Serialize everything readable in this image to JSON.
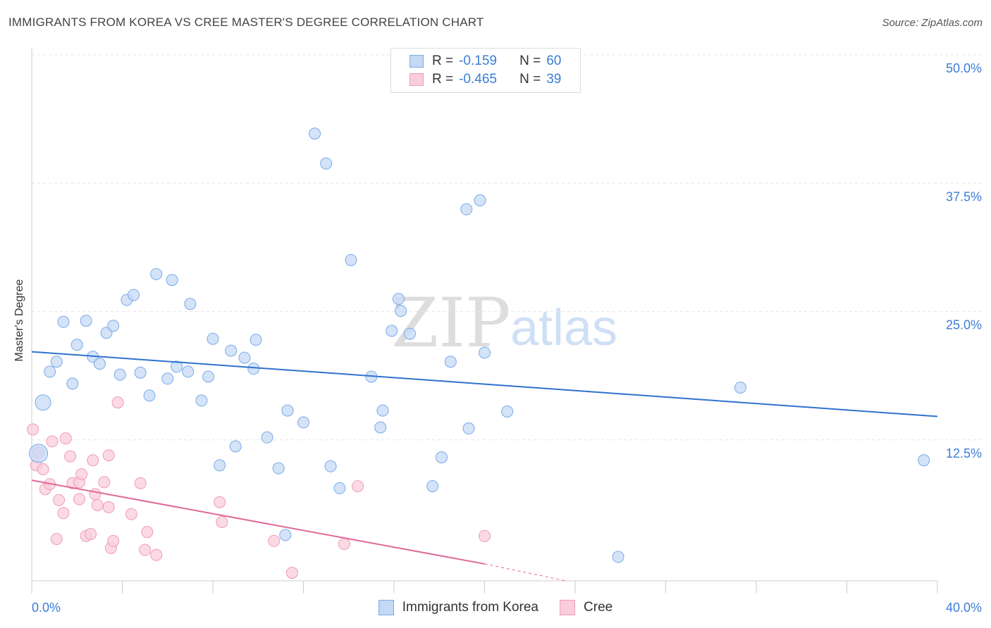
{
  "title": "IMMIGRANTS FROM KOREA VS CREE MASTER'S DEGREE CORRELATION CHART",
  "source": "Source: ZipAtlas.com",
  "watermark": {
    "zip": "ZIP",
    "atlas": "atlas"
  },
  "legend": {
    "rows": [
      {
        "r_label": "R =",
        "r_value": "-0.159",
        "n_label": "N =",
        "n_value": "60"
      },
      {
        "r_label": "R =",
        "r_value": "-0.465",
        "n_label": "N =",
        "n_value": "39"
      }
    ]
  },
  "bottom_legend": {
    "korea": "Immigrants from Korea",
    "cree": "Cree"
  },
  "chart_data": {
    "type": "scatter",
    "title": "IMMIGRANTS FROM KOREA VS CREE MASTER'S DEGREE CORRELATION CHART",
    "xlabel": "",
    "ylabel": "Master's Degree",
    "xlim": [
      0,
      40
    ],
    "ylim": [
      0,
      50
    ],
    "x_tick_labels": [
      "0.0%",
      "40.0%"
    ],
    "y_tick_labels": [
      "50.0%",
      "37.5%",
      "25.0%",
      "12.5%"
    ],
    "y_ticks": [
      50,
      37.5,
      25,
      12.5
    ],
    "grid": "horizontal dashed",
    "legend_placement": "top-center",
    "colors": {
      "korea": "#7aaae8",
      "korea_fill": "#c5d9f5",
      "korea_line": "#2f72d0",
      "cree": "#f09ab8",
      "cree_fill": "#f9cdda",
      "cree_line": "#e0689a"
    },
    "series": [
      {
        "name": "Immigrants from Korea",
        "points": [
          [
            0.3,
            12.8
          ],
          [
            0.5,
            17.9
          ],
          [
            0.8,
            21.0
          ],
          [
            1.1,
            22.0
          ],
          [
            1.4,
            26.0
          ],
          [
            1.8,
            19.8
          ],
          [
            2.0,
            23.7
          ],
          [
            2.4,
            26.1
          ],
          [
            2.7,
            22.5
          ],
          [
            3.0,
            21.8
          ],
          [
            3.3,
            24.9
          ],
          [
            3.6,
            25.6
          ],
          [
            3.9,
            20.7
          ],
          [
            4.2,
            28.2
          ],
          [
            4.5,
            28.7
          ],
          [
            4.8,
            20.9
          ],
          [
            5.2,
            18.6
          ],
          [
            5.5,
            30.8
          ],
          [
            6.0,
            20.3
          ],
          [
            6.2,
            30.2
          ],
          [
            6.4,
            21.5
          ],
          [
            6.9,
            21.0
          ],
          [
            7.0,
            27.8
          ],
          [
            7.5,
            18.1
          ],
          [
            7.8,
            20.5
          ],
          [
            8.0,
            24.3
          ],
          [
            8.3,
            11.6
          ],
          [
            8.8,
            23.1
          ],
          [
            9.0,
            13.5
          ],
          [
            9.4,
            22.4
          ],
          [
            9.8,
            21.3
          ],
          [
            9.9,
            24.2
          ],
          [
            10.4,
            14.4
          ],
          [
            10.9,
            11.3
          ],
          [
            11.2,
            4.6
          ],
          [
            11.3,
            17.1
          ],
          [
            12.0,
            15.9
          ],
          [
            12.5,
            44.9
          ],
          [
            13.0,
            41.9
          ],
          [
            13.2,
            11.5
          ],
          [
            13.6,
            9.3
          ],
          [
            14.1,
            32.2
          ],
          [
            15.0,
            20.5
          ],
          [
            15.4,
            15.4
          ],
          [
            15.5,
            17.1
          ],
          [
            15.9,
            25.1
          ],
          [
            16.2,
            28.3
          ],
          [
            16.3,
            27.1
          ],
          [
            16.7,
            24.8
          ],
          [
            17.7,
            9.5
          ],
          [
            18.1,
            12.4
          ],
          [
            18.5,
            22.0
          ],
          [
            19.2,
            37.3
          ],
          [
            19.3,
            15.3
          ],
          [
            19.8,
            38.2
          ],
          [
            20.0,
            22.9
          ],
          [
            21.0,
            17.0
          ],
          [
            31.3,
            19.4
          ],
          [
            25.9,
            2.4
          ],
          [
            39.4,
            12.1
          ]
        ],
        "trend": [
          [
            0,
            23.0
          ],
          [
            40,
            16.5
          ]
        ]
      },
      {
        "name": "Cree",
        "points": [
          [
            0.05,
            15.2
          ],
          [
            0.2,
            11.6
          ],
          [
            0.3,
            12.9
          ],
          [
            0.5,
            11.2
          ],
          [
            0.6,
            9.2
          ],
          [
            0.8,
            9.7
          ],
          [
            0.9,
            14.0
          ],
          [
            1.1,
            4.2
          ],
          [
            1.2,
            8.1
          ],
          [
            1.4,
            6.8
          ],
          [
            1.5,
            14.3
          ],
          [
            1.7,
            12.5
          ],
          [
            1.8,
            9.8
          ],
          [
            2.1,
            9.9
          ],
          [
            2.1,
            8.2
          ],
          [
            2.2,
            10.7
          ],
          [
            2.4,
            4.5
          ],
          [
            2.6,
            4.7
          ],
          [
            2.7,
            12.1
          ],
          [
            2.8,
            8.7
          ],
          [
            2.9,
            7.6
          ],
          [
            3.2,
            9.9
          ],
          [
            3.4,
            12.6
          ],
          [
            3.4,
            7.4
          ],
          [
            3.5,
            3.3
          ],
          [
            3.6,
            4.0
          ],
          [
            3.8,
            17.9
          ],
          [
            4.4,
            6.7
          ],
          [
            4.8,
            9.8
          ],
          [
            5.0,
            3.1
          ],
          [
            5.1,
            4.9
          ],
          [
            5.5,
            2.6
          ],
          [
            8.3,
            7.9
          ],
          [
            8.4,
            5.9
          ],
          [
            10.7,
            4.0
          ],
          [
            11.5,
            0.8
          ],
          [
            13.8,
            3.7
          ],
          [
            14.4,
            9.5
          ],
          [
            20.0,
            4.5
          ]
        ],
        "trend": [
          [
            0,
            10.1
          ],
          [
            20.0,
            1.7
          ]
        ],
        "trend_dashed_to": [
          23.6,
          0
        ]
      }
    ]
  }
}
